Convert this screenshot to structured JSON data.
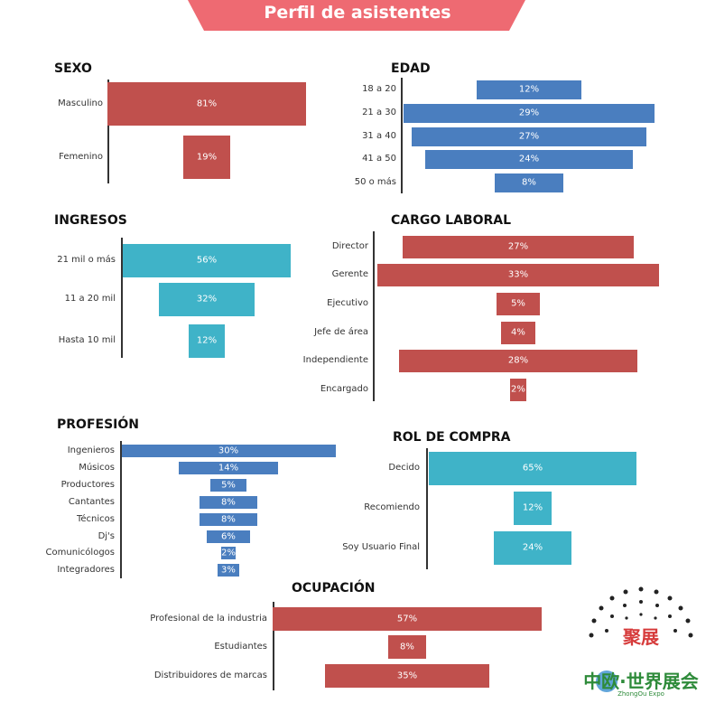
{
  "banner": {
    "title": "Perfil de asistentes",
    "color": "#ee6a72"
  },
  "logo": {
    "brand": "中欧·世界展会",
    "sub": "ZhongOu Expo",
    "badge": "聚展"
  },
  "chart_data": [
    {
      "type": "bar",
      "orientation": "horizontal-centered",
      "title": "SEXO",
      "color": "#c0504d",
      "categories": [
        "Masculino",
        "Femenino"
      ],
      "values": [
        81,
        19
      ],
      "labels": [
        "81%",
        "19%"
      ],
      "unit": "%"
    },
    {
      "type": "bar",
      "orientation": "horizontal-centered",
      "title": "EDAD",
      "color": "#4a7ebf",
      "categories": [
        "18 a 20",
        "21 a 30",
        "31 a 40",
        "41 a 50",
        "50 o más"
      ],
      "values": [
        12,
        29,
        27,
        24,
        8
      ],
      "labels": [
        "12%",
        "29%",
        "27%",
        "24%",
        "8%"
      ],
      "unit": "%"
    },
    {
      "type": "bar",
      "orientation": "horizontal-centered",
      "title": "INGRESOS",
      "color": "#3fb3c8",
      "categories": [
        "21 mil o más",
        "11 a 20 mil",
        "Hasta 10 mil"
      ],
      "values": [
        56,
        32,
        12
      ],
      "labels": [
        "56%",
        "32%",
        "12%"
      ],
      "unit": "%"
    },
    {
      "type": "bar",
      "orientation": "horizontal-centered",
      "title": "CARGO LABORAL",
      "color": "#c0504d",
      "categories": [
        "Director",
        "Gerente",
        "Ejecutivo",
        "Jefe de área",
        "Independiente",
        "Encargado"
      ],
      "values": [
        27,
        33,
        5,
        4,
        28,
        2
      ],
      "labels": [
        "27%",
        "33%",
        "5%",
        "4%",
        "28%",
        "2%"
      ],
      "unit": "%"
    },
    {
      "type": "bar",
      "orientation": "horizontal-centered",
      "title": "PROFESIÓN",
      "color": "#4a7ebf",
      "categories": [
        "Ingenieros",
        "Músicos",
        "Productores",
        "Cantantes",
        "Técnicos",
        "Dj's",
        "Comunicólogos",
        "Integradores"
      ],
      "values": [
        30,
        14,
        5,
        8,
        8,
        6,
        2,
        3
      ],
      "labels": [
        "30%",
        "14%",
        "5%",
        "8%",
        "8%",
        "6%",
        "2%",
        "3%"
      ],
      "unit": "%"
    },
    {
      "type": "bar",
      "orientation": "horizontal-centered",
      "title": "ROL DE COMPRA",
      "color": "#3fb3c8",
      "categories": [
        "Decido",
        "Recomiendo",
        "Soy Usuario Final"
      ],
      "values": [
        65,
        12,
        24
      ],
      "labels": [
        "65%",
        "12%",
        "24%"
      ],
      "unit": "%"
    },
    {
      "type": "bar",
      "orientation": "horizontal-centered",
      "title": "OCUPACIÓN",
      "color": "#c0504d",
      "categories": [
        "Profesional de la industria",
        "Estudiantes",
        "Distribuidores de marcas"
      ],
      "values": [
        57,
        8,
        35
      ],
      "labels": [
        "57%",
        "8%",
        "35%"
      ],
      "unit": "%"
    }
  ]
}
